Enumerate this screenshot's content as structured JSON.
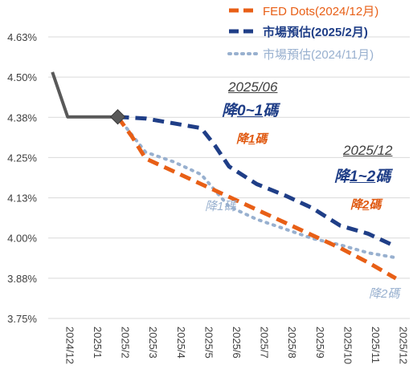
{
  "chart_data": {
    "type": "line",
    "categories": [
      "2024/12",
      "2025/1",
      "2025/2",
      "2025/3",
      "2025/4",
      "2025/5",
      "2025/6",
      "2025/7",
      "2025/8",
      "2025/9",
      "2025/10",
      "2025/11",
      "2025/12"
    ],
    "y_ticks": [
      "4.63%",
      "4.50%",
      "4.38%",
      "4.25%",
      "4.13%",
      "4.00%",
      "3.88%",
      "3.75%"
    ],
    "ylim": [
      3.75,
      4.63
    ],
    "grid": true,
    "legend_position": "top-right",
    "history": {
      "x": [
        -0.35,
        0.2,
        1.0,
        2.0
      ],
      "values": [
        4.52,
        4.38,
        4.38,
        4.38
      ],
      "color": "#595959"
    },
    "series": [
      {
        "name": "FED Dots(2024/12月)",
        "color": "#e85f16",
        "style": "dash",
        "x": [
          2.0,
          2.5,
          3.0,
          4.0,
          5.0,
          6.0,
          7.0,
          8.0,
          9.0,
          10.0,
          11.0,
          12.0
        ],
        "values": [
          4.38,
          4.32,
          4.25,
          4.21,
          4.17,
          4.13,
          4.09,
          4.05,
          4.01,
          3.97,
          3.925,
          3.875
        ]
      },
      {
        "name": "市場預估(2025/2月)",
        "color": "#1f3e87",
        "style": "dash",
        "x": [
          2.0,
          3.0,
          4.0,
          5.0,
          5.5,
          6.0,
          7.0,
          8.0,
          9.0,
          10.0,
          11.0,
          12.0
        ],
        "values": [
          4.38,
          4.375,
          4.36,
          4.345,
          4.29,
          4.225,
          4.17,
          4.135,
          4.095,
          4.04,
          4.015,
          3.975
        ]
      },
      {
        "name": "市場預估(2024/11月)",
        "color": "#98b0cf",
        "style": "dot",
        "x": [
          2.0,
          3.0,
          4.0,
          5.0,
          6.0,
          7.0,
          8.0,
          9.0,
          10.0,
          11.0,
          12.0
        ],
        "values": [
          4.38,
          4.27,
          4.24,
          4.2,
          4.1,
          4.06,
          4.03,
          4.0,
          3.98,
          3.955,
          3.94
        ]
      }
    ],
    "annotations": {
      "date1": "2025/06",
      "big1_pre": "降",
      "big1_ul": "0~1",
      "big1_post": "碼",
      "mid1_pre": "降",
      "mid1_ul": "1",
      "mid1_post": "碼",
      "small1": "降1碼",
      "date2": "2025/12",
      "big2_pre": "降",
      "big2_ul": "1~2",
      "big2_post": "碼",
      "mid2_pre": "降",
      "mid2_ul": "2",
      "mid2_post": "碼",
      "small2": "降2碼"
    }
  }
}
